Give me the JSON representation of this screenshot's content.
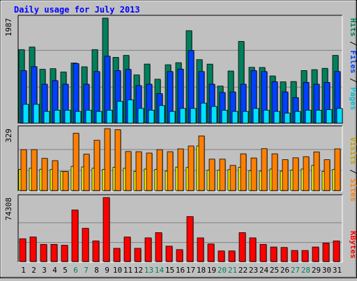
{
  "chart_data": [
    {
      "type": "bar",
      "title": "Daily usage for July 2013",
      "panel": "top",
      "ymax_label": "1987",
      "ylim": [
        0,
        1987
      ],
      "categories": [
        "1",
        "2",
        "3",
        "4",
        "5",
        "6",
        "7",
        "8",
        "9",
        "10",
        "11",
        "12",
        "13",
        "14",
        "15",
        "16",
        "17",
        "18",
        "19",
        "20",
        "21",
        "22",
        "23",
        "24",
        "25",
        "26",
        "27",
        "28",
        "29",
        "30",
        "31"
      ],
      "weekend_days": [
        "6",
        "7",
        "13",
        "14",
        "20",
        "21",
        "27",
        "28"
      ],
      "legend": [
        "Pages",
        "Files",
        "Hits"
      ],
      "series": [
        {
          "name": "Hits",
          "color": "#00805c",
          "values": [
            1395,
            1443,
            1025,
            1037,
            974,
            1142,
            1072,
            1395,
            1987,
            1249,
            1286,
            919,
            1123,
            838,
            1110,
            1149,
            1751,
            1206,
            1122,
            709,
            993,
            1549,
            1062,
            1059,
            900,
            789,
            795,
            1001,
            1018,
            1043,
            1286
          ]
        },
        {
          "name": "Files",
          "color": "#0040ff",
          "values": [
            1000,
            1075,
            745,
            813,
            745,
            1134,
            745,
            983,
            1271,
            1000,
            1023,
            719,
            745,
            567,
            983,
            1029,
            1379,
            983,
            745,
            589,
            600,
            745,
            1000,
            983,
            791,
            600,
            493,
            779,
            745,
            779,
            983
          ]
        },
        {
          "name": "Pages",
          "color": "#00e0ff",
          "values": [
            366,
            366,
            233,
            256,
            256,
            233,
            256,
            233,
            256,
            422,
            449,
            289,
            256,
            343,
            233,
            289,
            289,
            389,
            326,
            256,
            233,
            233,
            289,
            256,
            233,
            200,
            233,
            256,
            256,
            266,
            289
          ]
        }
      ]
    },
    {
      "type": "bar",
      "panel": "middle",
      "ymax_label": "329",
      "ylim": [
        0,
        329
      ],
      "legend": [
        "Sites",
        "Visits"
      ],
      "series": [
        {
          "name": "Visits",
          "color": "#ff8000",
          "values": [
            219,
            219,
            173,
            161,
            104,
            305,
            195,
            268,
            329,
            324,
            209,
            208,
            201,
            219,
            208,
            223,
            238,
            291,
            169,
            169,
            136,
            197,
            175,
            224,
            197,
            166,
            176,
            182,
            207,
            166,
            223
          ]
        },
        {
          "name": "Sites",
          "color": "#ffff00",
          "values": [
            115,
            121,
            116,
            115,
            104,
            131,
            128,
            121,
            115,
            126,
            121,
            104,
            117,
            115,
            106,
            127,
            125,
            238,
            111,
            111,
            114,
            126,
            108,
            106,
            117,
            106,
            112,
            117,
            136,
            104,
            115
          ]
        }
      ]
    },
    {
      "type": "bar",
      "panel": "bottom",
      "ymax_label": "74308",
      "ylim": [
        0,
        74308
      ],
      "legend": [
        "KBytes"
      ],
      "series": [
        {
          "name": "KBytes",
          "color": "#ff0000",
          "values": [
            27000,
            29000,
            20500,
            20500,
            19500,
            60000,
            39000,
            24500,
            74308,
            16000,
            29000,
            16000,
            28000,
            34000,
            18500,
            14500,
            52500,
            28000,
            21000,
            13000,
            13000,
            34000,
            28000,
            20500,
            17500,
            17000,
            13500,
            13500,
            17500,
            22000,
            24500
          ]
        }
      ]
    }
  ]
}
